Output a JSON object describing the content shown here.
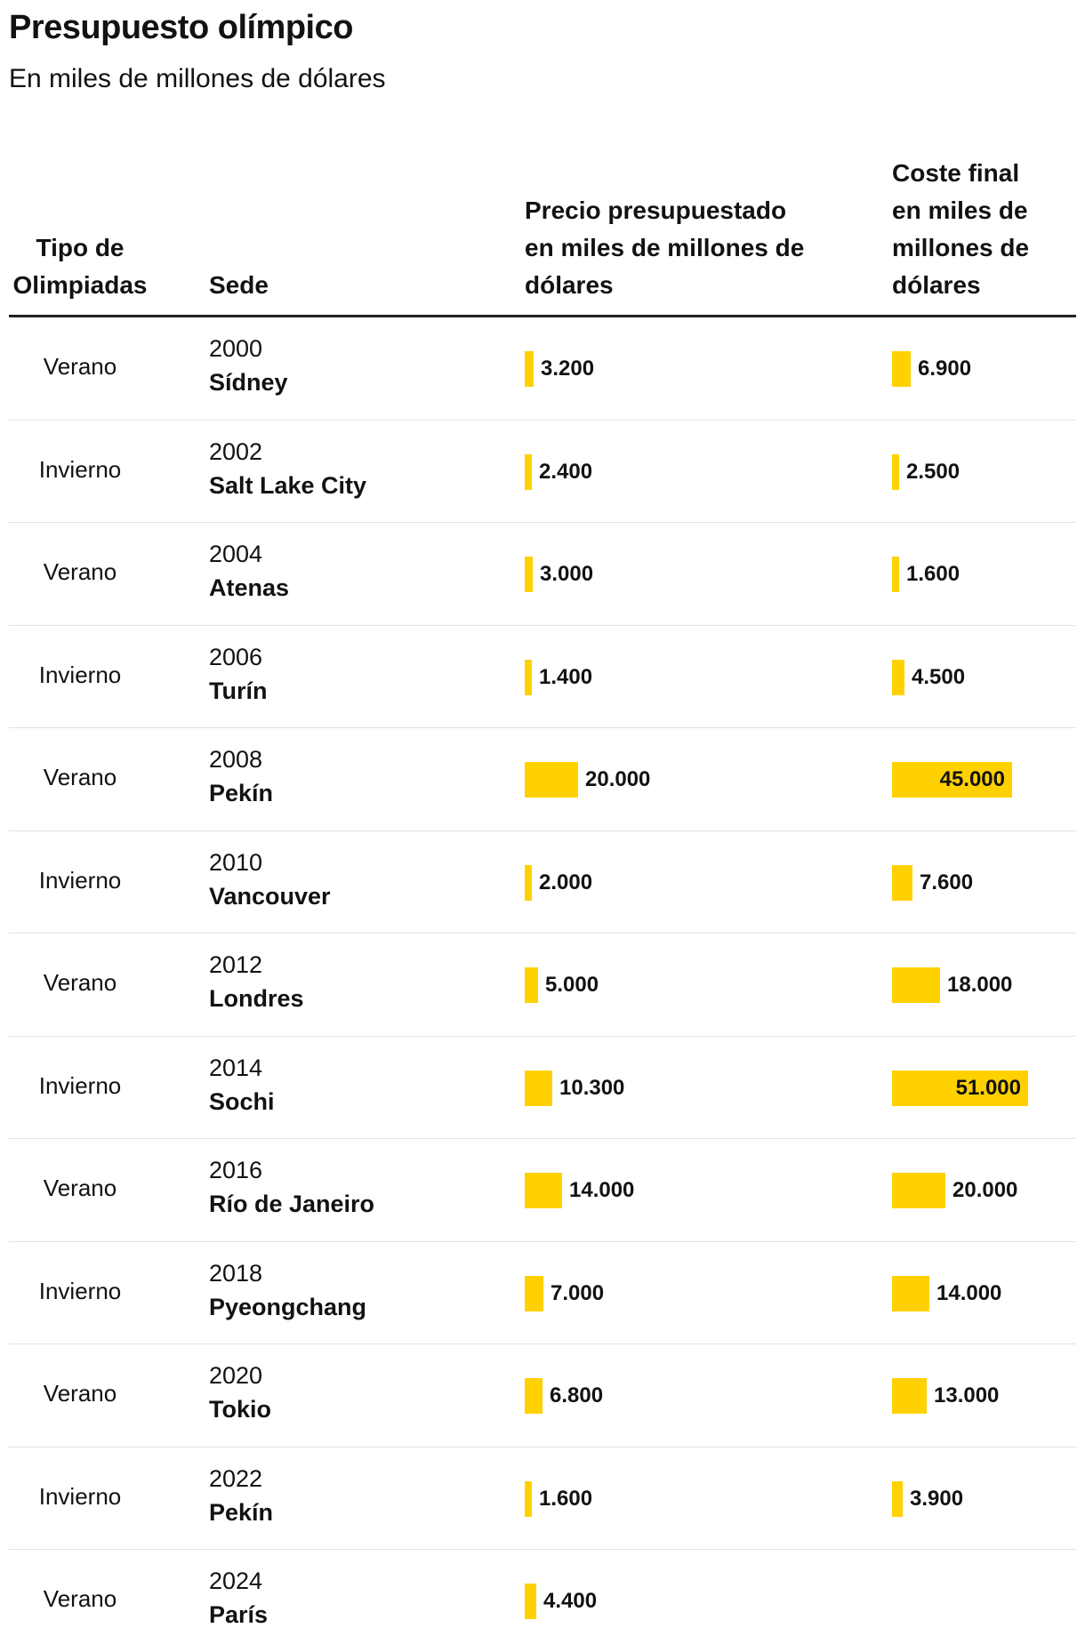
{
  "title": "Presupuesto olímpico",
  "subtitle": "En miles de millones de dólares",
  "headers": {
    "tipo": [
      "Tipo de",
      "Olimpiadas"
    ],
    "sede": "Sede",
    "precio": [
      "Precio presupuestado",
      "en miles de millones de",
      "dólares"
    ],
    "coste": [
      "Coste final",
      "en miles de",
      "millones de",
      "dólares"
    ]
  },
  "colors": {
    "bar": "#ffd100",
    "text": "#121212",
    "rule": "#222222"
  },
  "rows": [
    {
      "tipo": "Verano",
      "year": "2000",
      "city": "Sídney",
      "precio_label": "3.200",
      "coste_label": "6.900"
    },
    {
      "tipo": "Invierno",
      "year": "2002",
      "city": "Salt Lake City",
      "precio_label": "2.400",
      "coste_label": "2.500"
    },
    {
      "tipo": "Verano",
      "year": "2004",
      "city": "Atenas",
      "precio_label": "3.000",
      "coste_label": "1.600"
    },
    {
      "tipo": "Invierno",
      "year": "2006",
      "city": "Turín",
      "precio_label": "1.400",
      "coste_label": "4.500"
    },
    {
      "tipo": "Verano",
      "year": "2008",
      "city": "Pekín",
      "precio_label": "20.000",
      "coste_label": "45.000"
    },
    {
      "tipo": "Invierno",
      "year": "2010",
      "city": "Vancouver",
      "precio_label": "2.000",
      "coste_label": "7.600"
    },
    {
      "tipo": "Verano",
      "year": "2012",
      "city": "Londres",
      "precio_label": "5.000",
      "coste_label": "18.000"
    },
    {
      "tipo": "Invierno",
      "year": "2014",
      "city": "Sochi",
      "precio_label": "10.300",
      "coste_label": "51.000"
    },
    {
      "tipo": "Verano",
      "year": "2016",
      "city": "Río de Janeiro",
      "precio_label": "14.000",
      "coste_label": "20.000"
    },
    {
      "tipo": "Invierno",
      "year": "2018",
      "city": "Pyeongchang",
      "precio_label": "7.000",
      "coste_label": "14.000"
    },
    {
      "tipo": "Verano",
      "year": "2020",
      "city": "Tokio",
      "precio_label": "6.800",
      "coste_label": "13.000"
    },
    {
      "tipo": "Invierno",
      "year": "2022",
      "city": "Pekín",
      "precio_label": "1.600",
      "coste_label": "3.900"
    },
    {
      "tipo": "Verano",
      "year": "2024",
      "city": "París",
      "precio_label": "4.400",
      "coste_label": null
    }
  ],
  "chart_data": {
    "type": "table",
    "title": "Presupuesto olímpico",
    "subtitle": "En miles de millones de dólares",
    "categories": [
      "2000",
      "2002",
      "2004",
      "2006",
      "2008",
      "2010",
      "2012",
      "2014",
      "2016",
      "2018",
      "2020",
      "2022",
      "2024"
    ],
    "series": [
      {
        "name": "Precio presupuestado en miles de millones de dólares",
        "values": [
          3200,
          2400,
          3000,
          1400,
          20000,
          2000,
          5000,
          10300,
          14000,
          7000,
          6800,
          1600,
          4400
        ]
      },
      {
        "name": "Coste final en miles de millones de dólares",
        "values": [
          6900,
          2500,
          1600,
          4500,
          45000,
          7600,
          18000,
          51000,
          20000,
          14000,
          13000,
          3900,
          null
        ]
      }
    ]
  }
}
